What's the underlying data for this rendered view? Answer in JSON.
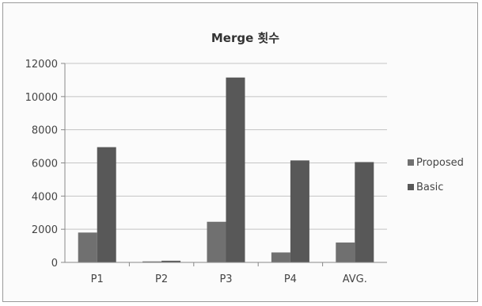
{
  "chart_data": {
    "type": "bar",
    "title": "Merge 횟수",
    "xlabel": "",
    "ylabel": "",
    "categories": [
      "P1",
      "P2",
      "P3",
      "P4",
      "AVG."
    ],
    "series": [
      {
        "name": "Proposed",
        "values": [
          1800,
          60,
          2450,
          600,
          1200
        ],
        "color": "#707070"
      },
      {
        "name": "Basic",
        "values": [
          6950,
          100,
          11150,
          6150,
          6050
        ],
        "color": "#585858"
      }
    ],
    "ylim": [
      0,
      12000
    ],
    "yticks": [
      0,
      2000,
      4000,
      6000,
      8000,
      10000,
      12000
    ],
    "grid": true,
    "legend_position": "right"
  }
}
